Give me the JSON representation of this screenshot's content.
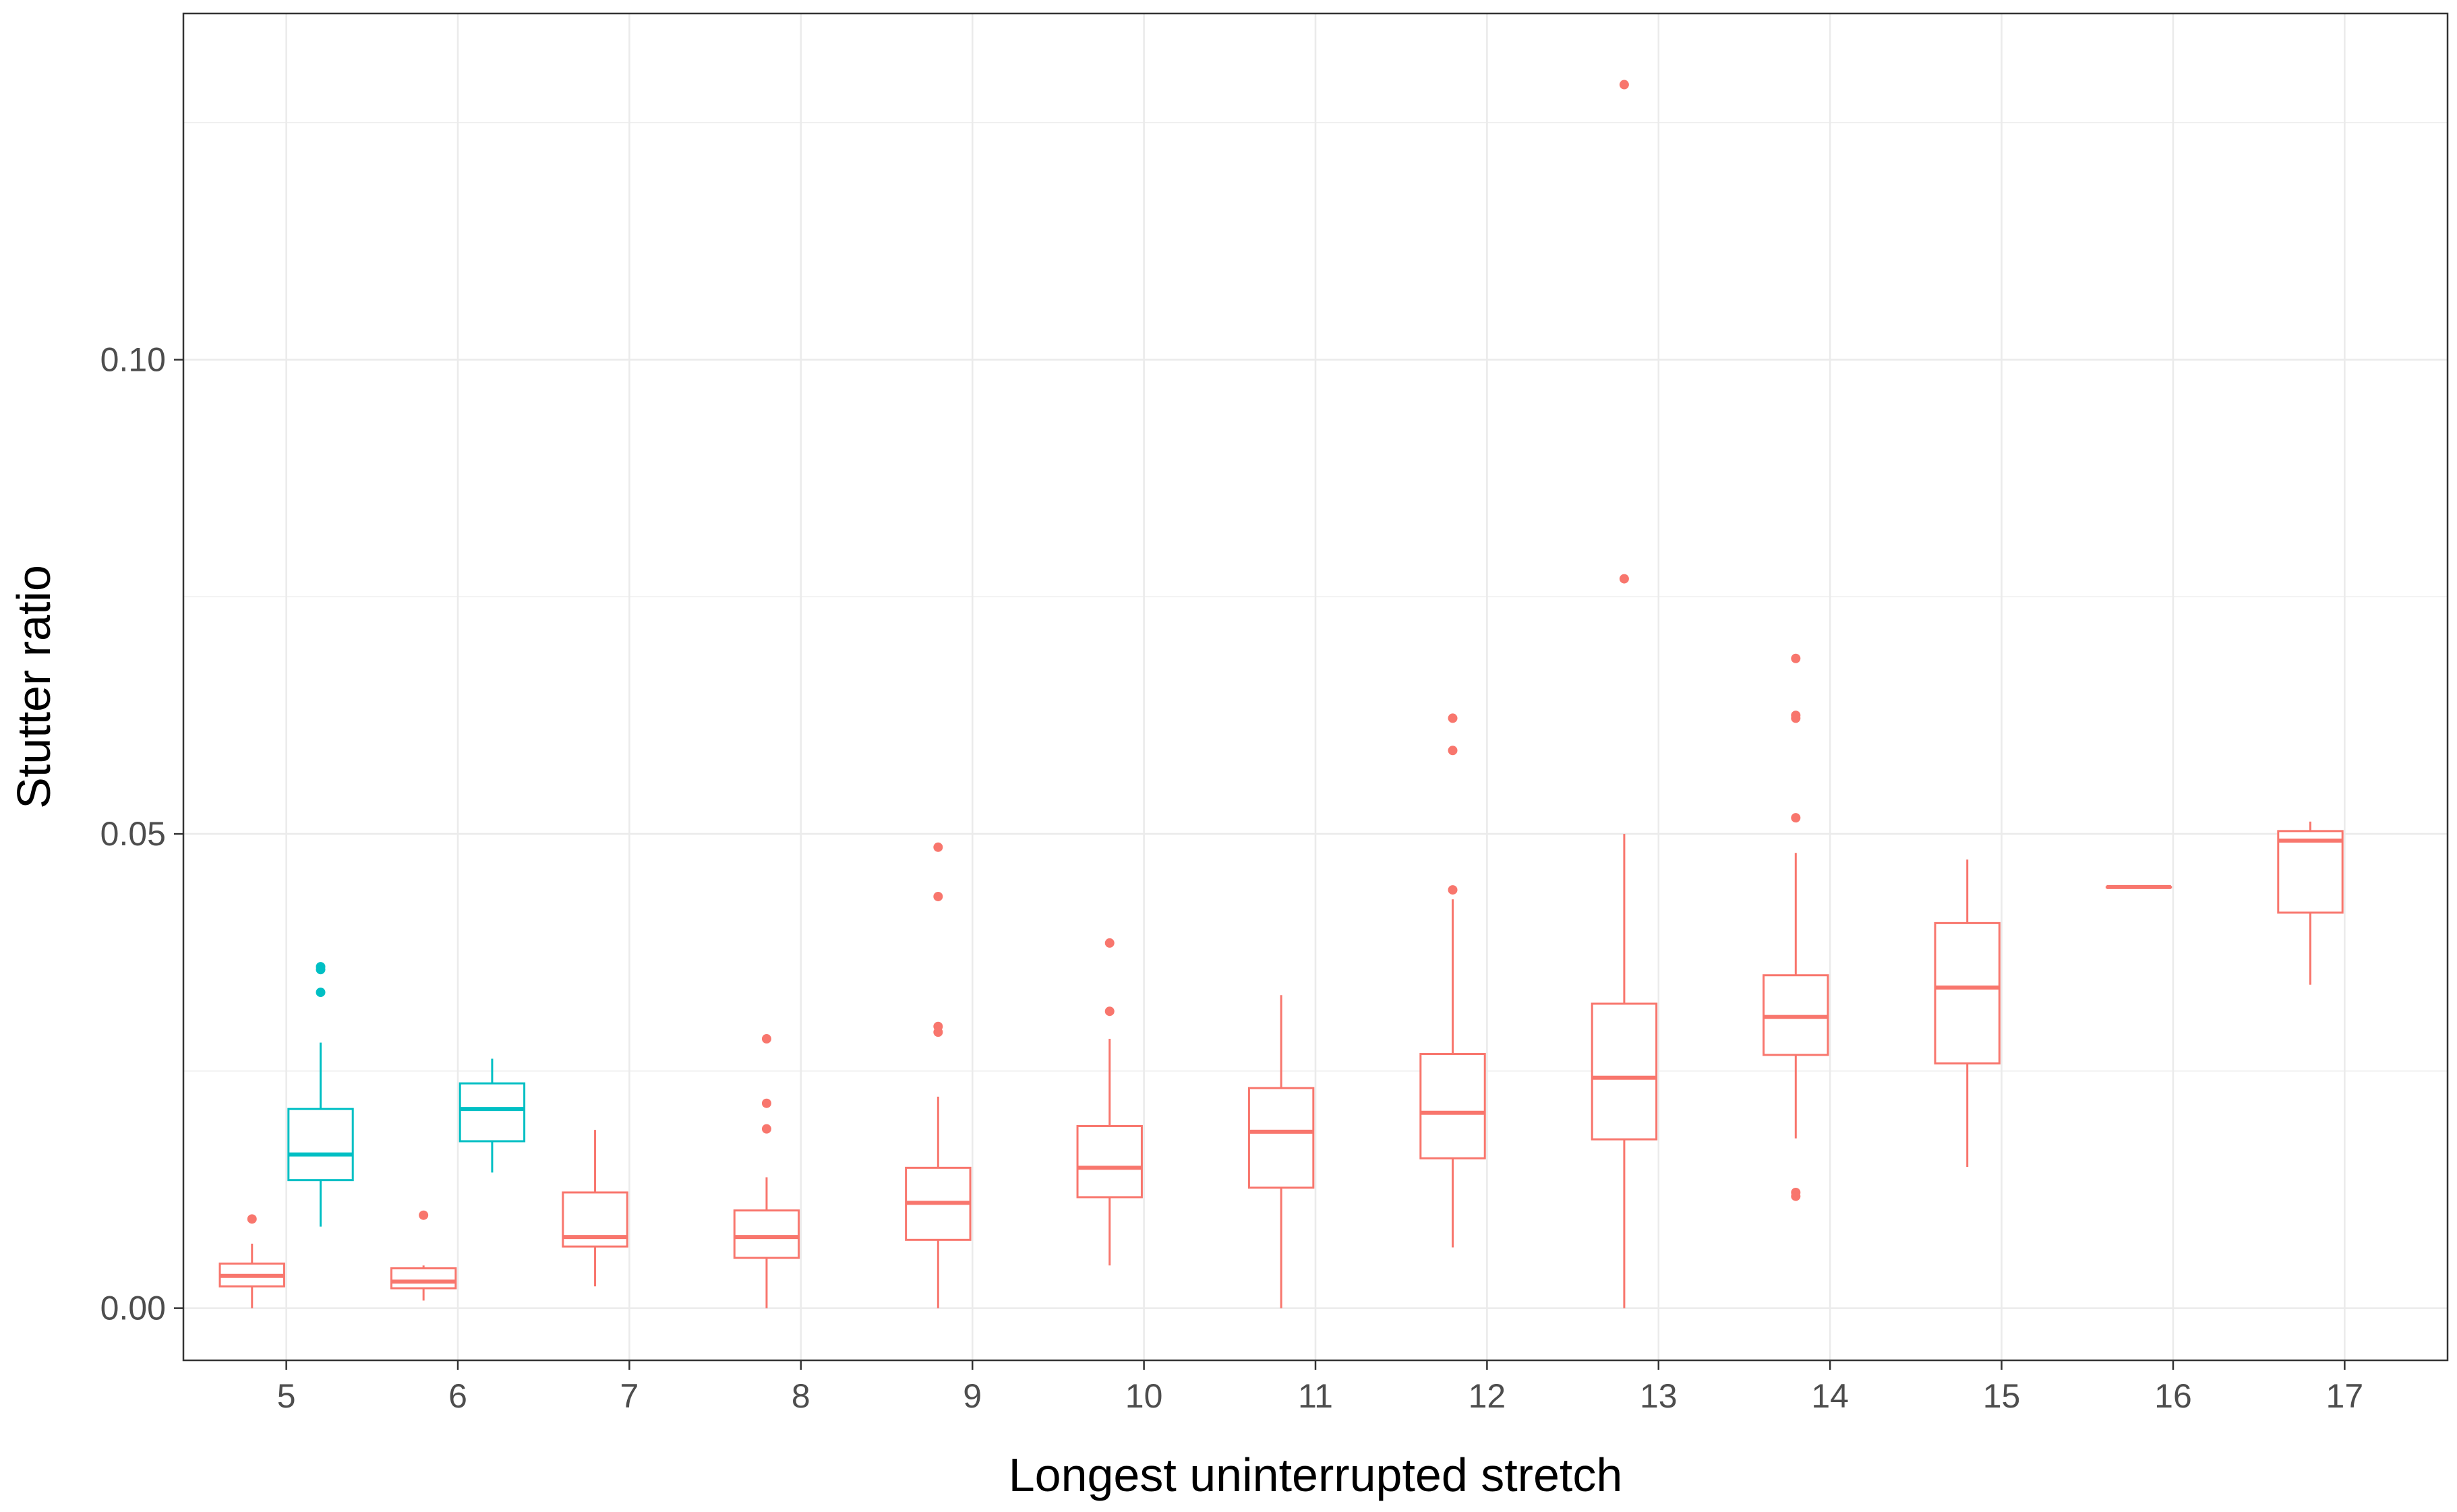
{
  "chart_data": {
    "type": "boxplot",
    "xlabel": "Longest uninterrupted stretch",
    "ylabel": "Stutter ratio",
    "ylim": [
      -0.0055,
      0.1365
    ],
    "y_ticks": [
      0.0,
      0.05,
      0.1
    ],
    "y_tick_labels": [
      "0.00",
      "0.05",
      "0.10"
    ],
    "categories": [
      "5",
      "6",
      "7",
      "8",
      "9",
      "10",
      "11",
      "12",
      "13",
      "14",
      "15",
      "16",
      "17"
    ],
    "grid": true,
    "legend": "none",
    "colors": {
      "group_a": "#F8766D",
      "group_b": "#00BFC4",
      "grid": "#ebebeb",
      "border": "#333333",
      "tick_text": "#4d4d4d"
    },
    "series": [
      {
        "color": "#F8766D",
        "offset": "left",
        "boxes": [
          {
            "x": "5",
            "lower_whisker": 0.0,
            "q1": 0.0023,
            "median": 0.0034,
            "q3": 0.0047,
            "upper_whisker": 0.0068,
            "outliers": [
              0.0094
            ]
          },
          {
            "x": "6",
            "lower_whisker": 0.0008,
            "q1": 0.0021,
            "median": 0.0028,
            "q3": 0.0042,
            "upper_whisker": 0.0045,
            "outliers": [
              0.0098
            ]
          },
          {
            "x": "7",
            "lower_whisker": 0.0023,
            "q1": 0.0065,
            "median": 0.0075,
            "q3": 0.0122,
            "upper_whisker": 0.0188,
            "outliers": []
          },
          {
            "x": "8",
            "lower_whisker": 0.0,
            "q1": 0.0053,
            "median": 0.0075,
            "q3": 0.0103,
            "upper_whisker": 0.0138,
            "outliers": [
              0.0189,
              0.0216,
              0.0284
            ]
          },
          {
            "x": "9",
            "lower_whisker": 0.0,
            "q1": 0.0072,
            "median": 0.0111,
            "q3": 0.0148,
            "upper_whisker": 0.0223,
            "outliers": [
              0.0291,
              0.0297,
              0.0434,
              0.0486
            ]
          },
          {
            "x": "10",
            "lower_whisker": 0.0045,
            "q1": 0.0117,
            "median": 0.0148,
            "q3": 0.0192,
            "upper_whisker": 0.0284,
            "outliers": [
              0.0313,
              0.0385
            ]
          },
          {
            "x": "11",
            "lower_whisker": 0.0,
            "q1": 0.0127,
            "median": 0.0186,
            "q3": 0.0232,
            "upper_whisker": 0.033,
            "outliers": []
          },
          {
            "x": "12",
            "lower_whisker": 0.0064,
            "q1": 0.0158,
            "median": 0.0206,
            "q3": 0.0268,
            "upper_whisker": 0.0431,
            "outliers": [
              0.0441,
              0.0588,
              0.0622
            ]
          },
          {
            "x": "13",
            "lower_whisker": 0.0,
            "q1": 0.0178,
            "median": 0.0243,
            "q3": 0.0321,
            "upper_whisker": 0.05,
            "outliers": [
              0.0769,
              0.129
            ]
          },
          {
            "x": "14",
            "lower_whisker": 0.0179,
            "q1": 0.0267,
            "median": 0.0307,
            "q3": 0.0351,
            "upper_whisker": 0.048,
            "outliers": [
              0.0118,
              0.0122,
              0.0517,
              0.0622,
              0.0625,
              0.0685
            ]
          },
          {
            "x": "15",
            "lower_whisker": 0.0149,
            "q1": 0.0258,
            "median": 0.0338,
            "q3": 0.0406,
            "upper_whisker": 0.0473,
            "outliers": []
          },
          {
            "x": "16",
            "lower_whisker": 0.0444,
            "q1": 0.0444,
            "median": 0.0444,
            "q3": 0.0444,
            "upper_whisker": 0.0444,
            "outliers": []
          },
          {
            "x": "17",
            "lower_whisker": 0.0341,
            "q1": 0.0417,
            "median": 0.0493,
            "q3": 0.0503,
            "upper_whisker": 0.0513,
            "outliers": []
          }
        ]
      },
      {
        "color": "#00BFC4",
        "offset": "right",
        "boxes": [
          {
            "x": "5",
            "lower_whisker": 0.0086,
            "q1": 0.0135,
            "median": 0.0162,
            "q3": 0.021,
            "upper_whisker": 0.028,
            "outliers": [
              0.0333,
              0.0357,
              0.036
            ]
          },
          {
            "x": "6",
            "lower_whisker": 0.0143,
            "q1": 0.0176,
            "median": 0.021,
            "q3": 0.0237,
            "upper_whisker": 0.0263,
            "outliers": []
          }
        ]
      }
    ]
  }
}
